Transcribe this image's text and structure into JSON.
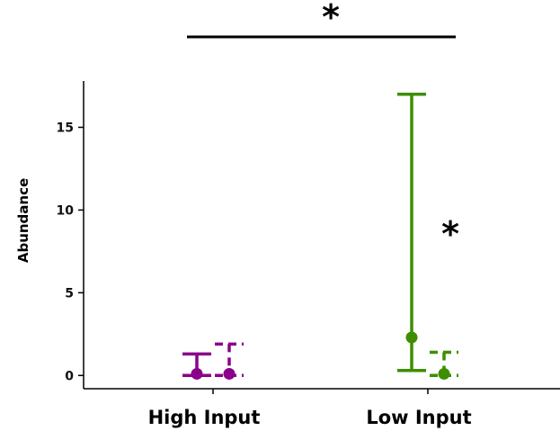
{
  "chart_data": {
    "type": "dot-errorbar",
    "categories": [
      "High Input",
      "Low Input"
    ],
    "ylabel": "Abundance",
    "xlabel": "",
    "ylim": [
      -0.8,
      17.8
    ],
    "yticks": [
      0,
      5,
      10,
      15
    ],
    "ytick_labels": [
      "0",
      "5",
      "10",
      "15"
    ],
    "grid": false,
    "series": [
      {
        "line_style": "solid",
        "points": [
          {
            "category": "High Input",
            "y": 0.1,
            "lower": 0,
            "upper": 1.3,
            "color": "#8B008B"
          },
          {
            "category": "Low Input",
            "y": 2.3,
            "lower": 0.3,
            "upper": 17.0,
            "color": "#3E8E00"
          }
        ]
      },
      {
        "line_style": "dashed",
        "points": [
          {
            "category": "High Input",
            "y": 0.1,
            "lower": 0,
            "upper": 1.9,
            "color": "#8B008B"
          },
          {
            "category": "Low Input",
            "y": 0.1,
            "lower": 0,
            "upper": 1.4,
            "color": "#3E8E00"
          }
        ]
      }
    ],
    "annotations": {
      "top_bracket_mark": "*",
      "low_input_mark": "*"
    }
  }
}
